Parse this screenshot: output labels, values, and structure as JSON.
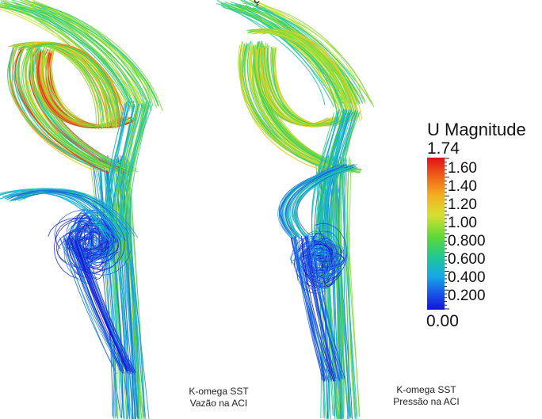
{
  "top_title": "ç",
  "legend": {
    "title": "U Magnitude",
    "max": "1.74",
    "min": "0.00",
    "ticks": [
      "1.60",
      "1.40",
      "1.20",
      "1.00",
      "0.800",
      "0.600",
      "0.400",
      "0.200"
    ]
  },
  "captions": {
    "left": {
      "line1": "K-omega SST",
      "line2": "Vazão na ACI"
    },
    "right": {
      "line1": "K-omega SST",
      "line2": "Pressão na ACI"
    }
  }
}
